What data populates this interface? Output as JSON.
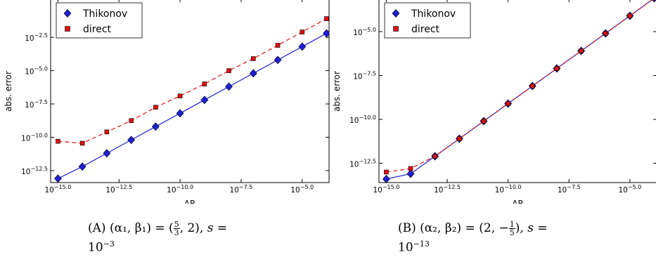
{
  "colors": {
    "thikonov": "#1f1fd6",
    "direct": "#e01010",
    "axis": "#000000"
  },
  "chart_data": [
    {
      "type": "line",
      "xlabel": "ΔR",
      "ylabel": "abs. error",
      "log_x": true,
      "log_y": true,
      "xlim": [
        -15.3,
        -3.9
      ],
      "ylim": [
        -13.4,
        0.3
      ],
      "x_ticks": [
        -15.0,
        -12.5,
        -10.0,
        -7.5,
        -5.0
      ],
      "x_tick_labels": [
        "−15.0",
        "−12.5",
        "−10.0",
        "−7.5",
        "−5.0"
      ],
      "y_ticks": [
        -12.5,
        -10.0,
        -7.5,
        -5.0,
        -2.5
      ],
      "y_tick_labels": [
        "−12.5",
        "−10.0",
        "−7.5",
        "−5.0",
        "−2.5"
      ],
      "tick_base": "10",
      "legend_position": "top-left",
      "series": [
        {
          "name": "Thikonov",
          "marker": "diamond",
          "linestyle": "solid",
          "color": "#1f1fd6",
          "x": [
            -15,
            -14,
            -13,
            -12,
            -11,
            -10,
            -9,
            -8,
            -7,
            -6,
            -5,
            -4
          ],
          "y": [
            -13.1,
            -12.2,
            -11.2,
            -10.2,
            -9.2,
            -8.2,
            -7.2,
            -6.2,
            -5.2,
            -4.2,
            -3.2,
            -2.2
          ]
        },
        {
          "name": "direct",
          "marker": "square",
          "linestyle": "dashed",
          "color": "#e01010",
          "x": [
            -15,
            -14,
            -13,
            -12,
            -11,
            -10,
            -9,
            -8,
            -7,
            -6,
            -5,
            -4
          ],
          "y": [
            -10.3,
            -10.45,
            -9.6,
            -8.75,
            -7.75,
            -6.9,
            -6.0,
            -5.0,
            -4.1,
            -3.1,
            -2.1,
            -1.1
          ]
        }
      ]
    },
    {
      "type": "line",
      "xlabel": "ΔR",
      "ylabel": "abs. error",
      "log_x": true,
      "log_y": true,
      "xlim": [
        -15.3,
        -3.9
      ],
      "ylim": [
        -13.6,
        -3.2
      ],
      "x_ticks": [
        -15.0,
        -12.5,
        -10.0,
        -7.5,
        -5.0
      ],
      "x_tick_labels": [
        "−15.0",
        "−12.5",
        "−10.0",
        "−7.5",
        "−5.0"
      ],
      "y_ticks": [
        -12.5,
        -10.0,
        -7.5,
        -5.0
      ],
      "y_tick_labels": [
        "−12.5",
        "−10.0",
        "−7.5",
        "−5.0"
      ],
      "tick_base": "10",
      "legend_position": "top-left",
      "series": [
        {
          "name": "Thikonov",
          "marker": "diamond",
          "linestyle": "solid",
          "color": "#1f1fd6",
          "x": [
            -15,
            -14,
            -13,
            -12,
            -11,
            -10,
            -9,
            -8,
            -7,
            -6,
            -5,
            -4
          ],
          "y": [
            -13.4,
            -13.1,
            -12.1,
            -11.1,
            -10.1,
            -9.1,
            -8.1,
            -7.1,
            -6.1,
            -5.1,
            -4.1,
            -3.1
          ]
        },
        {
          "name": "direct",
          "marker": "square",
          "linestyle": "dashed",
          "color": "#e01010",
          "x": [
            -15,
            -14,
            -13,
            -12,
            -11,
            -10,
            -9,
            -8,
            -7,
            -6,
            -5,
            -4
          ],
          "y": [
            -13.0,
            -12.8,
            -12.1,
            -11.1,
            -10.1,
            -9.1,
            -8.1,
            -7.1,
            -6.1,
            -5.1,
            -4.1,
            -3.1
          ]
        }
      ]
    }
  ],
  "captions": [
    {
      "tag": "(A)",
      "pair": "(α₁, β₁)",
      "eq1": "=",
      "open": "(",
      "num": "5",
      "den": "3",
      "close": ", 2),",
      "s": "s",
      "eq2": "=",
      "base": "10",
      "exp": "−3"
    },
    {
      "tag": "(B)",
      "pair": "(α₂, β₂)",
      "eq1": "=",
      "open": "(2, −",
      "num": "1",
      "den": "5",
      "close": "),",
      "s": "s",
      "eq2": "=",
      "base": "10",
      "exp": "−13"
    }
  ]
}
